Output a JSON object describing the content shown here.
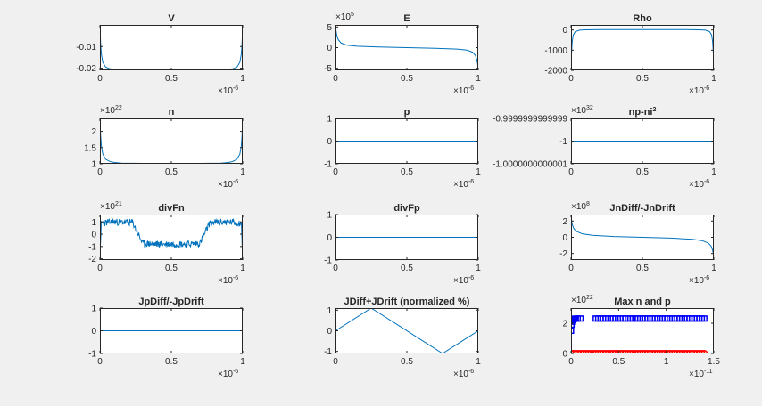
{
  "figure": {
    "background": "#f0f0f0",
    "axes_background": "#ffffff",
    "line_color": "#0072bd"
  },
  "chart_data": [
    {
      "type": "line",
      "title": "V",
      "xlim": [
        0,
        1
      ],
      "x_exponent": "-6",
      "ylim": [
        -0.021,
        0
      ],
      "xticks": [
        "0",
        "0.5",
        "1"
      ],
      "yticks": [
        "-0.01",
        "-0.02"
      ],
      "ytick_values": [
        -0.01,
        -0.02
      ],
      "series": [
        {
          "x": [
            0,
            0.005,
            0.01,
            0.02,
            0.04,
            0.07,
            0.1,
            0.15,
            0.3,
            0.5,
            0.7,
            0.85,
            0.9,
            0.93,
            0.96,
            0.98,
            0.99,
            0.995,
            1
          ],
          "y": [
            0,
            -0.009,
            -0.0135,
            -0.0173,
            -0.0195,
            -0.0203,
            -0.0205,
            -0.0206,
            -0.0206,
            -0.0206,
            -0.0206,
            -0.0206,
            -0.0205,
            -0.0203,
            -0.0195,
            -0.0173,
            -0.0135,
            -0.009,
            0
          ]
        }
      ]
    },
    {
      "type": "line",
      "title": "E",
      "xlim": [
        0,
        1
      ],
      "x_exponent": "-6",
      "y_exponent": "5",
      "ylim": [
        -5.5,
        5.5
      ],
      "xticks": [
        "0",
        "0.5",
        "1"
      ],
      "yticks": [
        "5",
        "0",
        "-5"
      ],
      "ytick_values": [
        5,
        0,
        -5
      ],
      "series": [
        {
          "x": [
            0,
            0.005,
            0.01,
            0.02,
            0.04,
            0.08,
            0.15,
            0.3,
            0.5,
            0.7,
            0.85,
            0.92,
            0.96,
            0.98,
            0.99,
            0.995,
            1
          ],
          "y": [
            5.3,
            3.8,
            2.9,
            1.9,
            1.1,
            0.6,
            0.35,
            0.15,
            0,
            -0.15,
            -0.35,
            -0.6,
            -1.1,
            -1.9,
            -2.9,
            -3.8,
            -5.3
          ]
        }
      ]
    },
    {
      "type": "line",
      "title": "Rho",
      "xlim": [
        0,
        1
      ],
      "x_exponent": "-6",
      "ylim": [
        -2000,
        250
      ],
      "xticks": [
        "0",
        "0.5",
        "1"
      ],
      "yticks": [
        "0",
        "-1000",
        "-2000"
      ],
      "ytick_values": [
        0,
        -1000,
        -2000
      ],
      "series": [
        {
          "x": [
            0,
            0.003,
            0.008,
            0.015,
            0.03,
            0.06,
            0.1,
            0.2,
            0.5,
            0.8,
            0.9,
            0.94,
            0.97,
            0.985,
            0.992,
            0.997,
            1
          ],
          "y": [
            -2000,
            -1200,
            -600,
            -250,
            -80,
            -10,
            10,
            20,
            20,
            20,
            10,
            -10,
            -80,
            -250,
            -600,
            -1200,
            -2000
          ]
        }
      ]
    },
    {
      "type": "line",
      "title": "n",
      "xlim": [
        0,
        1
      ],
      "x_exponent": "-6",
      "y_exponent": "22",
      "ylim": [
        1,
        2.4
      ],
      "xticks": [
        "0",
        "0.5",
        "1"
      ],
      "yticks": [
        "2",
        "1.5",
        "1"
      ],
      "ytick_values": [
        2,
        1.5,
        1
      ],
      "series": [
        {
          "x": [
            0,
            0.005,
            0.01,
            0.02,
            0.04,
            0.07,
            0.1,
            0.15,
            0.3,
            0.5,
            0.7,
            0.85,
            0.9,
            0.93,
            0.96,
            0.98,
            0.99,
            0.995,
            1
          ],
          "y": [
            2.3,
            1.85,
            1.55,
            1.3,
            1.14,
            1.07,
            1.04,
            1.02,
            1.015,
            1.015,
            1.015,
            1.02,
            1.04,
            1.07,
            1.14,
            1.3,
            1.55,
            1.85,
            2.3
          ]
        }
      ]
    },
    {
      "type": "line",
      "title": "p",
      "xlim": [
        0,
        1
      ],
      "x_exponent": "-6",
      "ylim": [
        -1,
        1
      ],
      "xticks": [
        "0",
        "0.5",
        "1"
      ],
      "yticks": [
        "1",
        "0",
        "-1"
      ],
      "ytick_values": [
        1,
        0,
        -1
      ],
      "series": [
        {
          "x": [
            0,
            1
          ],
          "y": [
            0,
            0
          ]
        }
      ]
    },
    {
      "type": "line",
      "title": "np-ni",
      "title_superscript": "2",
      "xlim": [
        0,
        1
      ],
      "x_exponent": "-6",
      "y_exponent": "32",
      "ylim": [
        -1.0000000000001,
        -0.9999999999999
      ],
      "xticks": [
        "0",
        "0.5",
        "1"
      ],
      "yticks": [
        "-0.9999999999999",
        "-1",
        "-1.0000000000001"
      ],
      "ytick_values": [
        -0.9999999999999,
        -1,
        -1.0000000000001
      ],
      "series": [
        {
          "x": [
            0,
            1
          ],
          "y": [
            -1,
            -1
          ]
        }
      ]
    },
    {
      "type": "line",
      "title": "divFn",
      "xlim": [
        0,
        1
      ],
      "x_exponent": "-6",
      "y_exponent": "21",
      "ylim": [
        -2.1,
        1.6
      ],
      "xticks": [
        "0",
        "0.5",
        "1"
      ],
      "yticks": [
        "1",
        "0",
        "-1",
        "-2"
      ],
      "ytick_values": [
        1,
        0,
        -1,
        -2
      ],
      "noise_amplitude": 0.28,
      "series": [
        {
          "x": [
            0,
            0.004,
            0.008,
            0.1,
            0.23,
            0.26,
            0.3,
            0.4,
            0.5,
            0.6,
            0.7,
            0.74,
            0.77,
            0.9,
            0.992,
            0.996,
            1
          ],
          "y": [
            1.5,
            -1.9,
            0.9,
            1.0,
            0.95,
            0.2,
            -0.75,
            -0.8,
            -0.8,
            -0.8,
            -0.75,
            0.2,
            0.95,
            1.0,
            0.9,
            -1.9,
            1.5
          ]
        }
      ]
    },
    {
      "type": "line",
      "title": "divFp",
      "xlim": [
        0,
        1
      ],
      "x_exponent": "-6",
      "ylim": [
        -1,
        1
      ],
      "xticks": [
        "0",
        "0.5",
        "1"
      ],
      "yticks": [
        "1",
        "0",
        "-1"
      ],
      "ytick_values": [
        1,
        0,
        -1
      ],
      "series": [
        {
          "x": [
            0,
            1
          ],
          "y": [
            0,
            0
          ]
        }
      ]
    },
    {
      "type": "line",
      "title": "JnDiff/-JnDrift",
      "xlim": [
        0,
        1
      ],
      "x_exponent": "-6",
      "y_exponent": "8",
      "ylim": [
        -2.8,
        2.8
      ],
      "xticks": [
        "0",
        "0.5",
        "1"
      ],
      "yticks": [
        "2",
        "0",
        "-2"
      ],
      "ytick_values": [
        2,
        0,
        -2
      ],
      "series": [
        {
          "x": [
            0,
            0.005,
            0.01,
            0.02,
            0.04,
            0.08,
            0.15,
            0.3,
            0.5,
            0.7,
            0.85,
            0.92,
            0.96,
            0.98,
            0.99,
            0.995,
            1
          ],
          "y": [
            2.6,
            1.9,
            1.5,
            1.05,
            0.7,
            0.42,
            0.25,
            0.1,
            0,
            -0.1,
            -0.25,
            -0.42,
            -0.7,
            -1.05,
            -1.5,
            -1.9,
            -2.6
          ]
        }
      ]
    },
    {
      "type": "line",
      "title": "JpDiff/-JpDrift",
      "xlim": [
        0,
        1
      ],
      "x_exponent": "-6",
      "ylim": [
        -1,
        1
      ],
      "xticks": [
        "0",
        "0.5",
        "1"
      ],
      "yticks": [
        "1",
        "0",
        "-1"
      ],
      "ytick_values": [
        1,
        0,
        -1
      ],
      "series": [
        {
          "x": [
            0,
            1
          ],
          "y": [
            0,
            0
          ]
        }
      ]
    },
    {
      "type": "line",
      "title": "JDiff+JDrift (normalized %)",
      "xlim": [
        0,
        1
      ],
      "x_exponent": "-6",
      "ylim": [
        -1.1,
        1.1
      ],
      "xticks": [
        "0",
        "0.5",
        "1"
      ],
      "yticks": [
        "1",
        "0",
        "-1"
      ],
      "ytick_values": [
        1,
        0,
        -1
      ],
      "series": [
        {
          "x": [
            0,
            0.25,
            0.75,
            1
          ],
          "y": [
            0,
            1.1,
            -1.1,
            0
          ]
        }
      ]
    },
    {
      "type": "scatter",
      "title": "Max n and p",
      "xlim": [
        0,
        1.5
      ],
      "x_exponent": "-11",
      "y_exponent": "22",
      "ylim": [
        0,
        3
      ],
      "xticks": [
        "0",
        "0.5",
        "1",
        "1.5"
      ],
      "xtick_values": [
        0,
        0.5,
        1,
        1.5
      ],
      "yticks": [
        "2",
        "0"
      ],
      "ytick_values": [
        2,
        0
      ],
      "series": [
        {
          "marker": "square",
          "color": "#0000ff",
          "count": 55,
          "x": [
            0,
            0.005,
            0.01,
            0.015,
            0.02,
            0.03,
            0.04,
            0.05,
            0.07,
            0.1,
            0.13,
            0.16,
            0.2,
            1.4
          ],
          "y": [
            1.5,
            1.9,
            2.1,
            2.2,
            2.25,
            2.28,
            2.3,
            2.3,
            2.31,
            2.31,
            2.31,
            2.31,
            2.31,
            2.31
          ]
        },
        {
          "marker": "circle",
          "color": "#ff0000",
          "count": 55,
          "x": [
            0,
            1.4
          ],
          "y": [
            0,
            0
          ]
        }
      ]
    }
  ]
}
